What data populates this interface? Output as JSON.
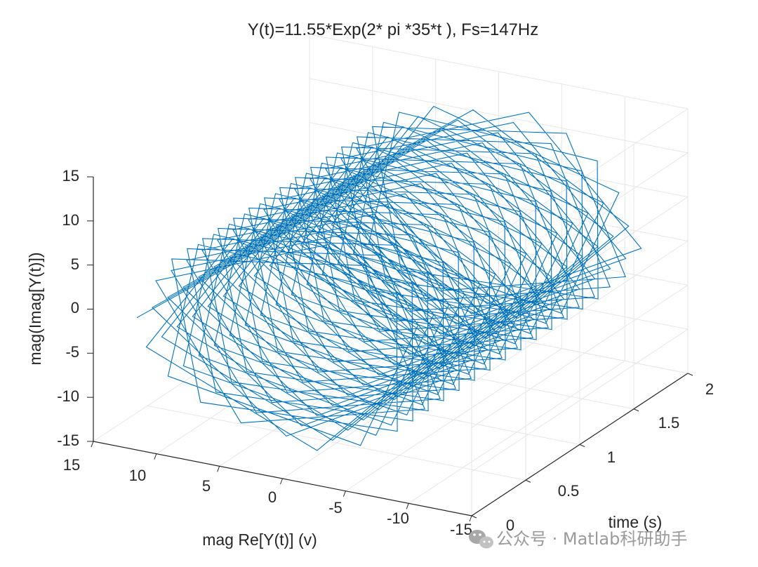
{
  "chart_data": {
    "type": "line3d",
    "title": "Y(t)=11.55*Exp(2* pi *35*t ),  Fs=147Hz",
    "xlabel": "mag Re[Y(t)] (v)",
    "ylabel": "time (s)",
    "zlabel": "mag(Imag[Y(t)])",
    "signal": {
      "amplitude": 11.55,
      "frequency_hz": 35,
      "sample_rate_hz": 147,
      "t_start": 0,
      "t_end": 2
    },
    "xlim": [
      -15,
      15
    ],
    "ylim": [
      0,
      2
    ],
    "zlim": [
      -15,
      15
    ],
    "x_ticks": [
      "15",
      "10",
      "5",
      "0",
      "-5",
      "-10",
      "-15"
    ],
    "y_ticks": [
      "0",
      "0.5",
      "1",
      "1.5",
      "2"
    ],
    "z_ticks": [
      "15",
      "10",
      "5",
      "0",
      "-5",
      "-10",
      "-15"
    ],
    "grid": true,
    "line_color": "#0072BD"
  },
  "watermark": {
    "text": "公众号 · Matlab科研助手",
    "icon": "wechat-icon"
  }
}
